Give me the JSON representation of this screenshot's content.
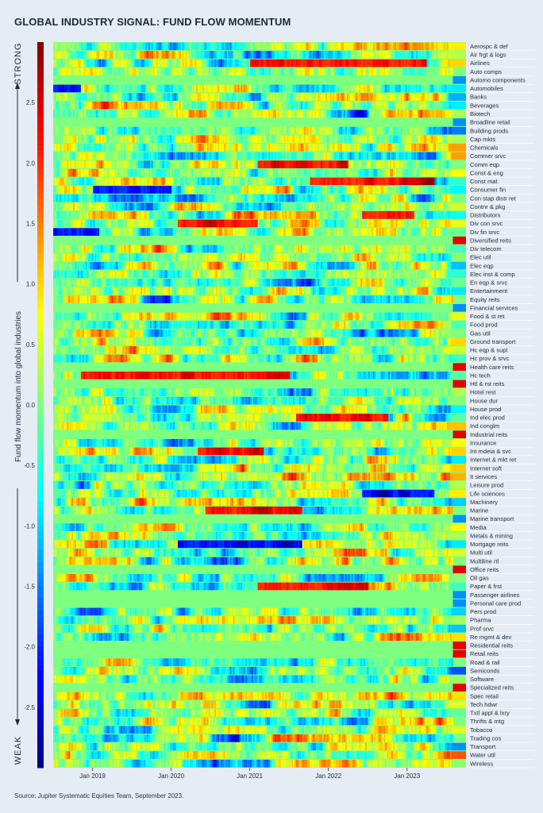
{
  "title": "GLOBAL INDUSTRY SIGNAL: FUND FLOW MOMENTUM",
  "source": "Source: Jupiter Systematic Equities Team, September 2023.",
  "chart_data": {
    "type": "heatmap",
    "colorbar": {
      "label": "Fund flow momentum into global industries",
      "top_label": "STRONG",
      "bottom_label": "WEAK",
      "range": [
        -3.0,
        3.0
      ],
      "ticks": [
        2.5,
        2.0,
        1.5,
        1.0,
        0.5,
        0.0,
        -0.5,
        -1.0,
        -1.5,
        -2.0,
        -2.5
      ],
      "tick_labels": [
        "2.5",
        "2.0",
        "1.5",
        "1.0",
        "0.5",
        "0.0",
        "-0.5",
        "-1.0",
        "-1.5",
        "-2.0",
        "-2.5"
      ],
      "colormap": "jet"
    },
    "x_axis": {
      "start": "2018-07",
      "end": "2023-09",
      "ticks": [
        "Jan 2019",
        "Jan 2020",
        "Jan 2021",
        "Jan 2022",
        "Jan 2023"
      ],
      "tick_months": [
        "2019-01",
        "2020-01",
        "2021-01",
        "2022-01",
        "2023-01"
      ]
    },
    "rows": [
      "Aerospc & def",
      "Air frgt & logs",
      "Airlines",
      "Auto comps",
      "Automo components",
      "Automobiles",
      "Banks",
      "Beverages",
      "Biotech",
      "Broadline retail",
      "Building prods",
      "Cap mkts",
      "Chemicals",
      "Commer srvc",
      "Comm eqp",
      "Const & eng",
      "Const mat",
      "Consumer fin",
      "Con stap distr ret",
      "Contnr & pkg",
      "Distributors",
      "Div con srvc",
      "Div fin srvc",
      "Diversified reits",
      "Div telecom",
      "Elec util",
      "Elec eqp",
      "Elec inst & comp",
      "En eqp & srvc",
      "Entertainment",
      "Equity reits",
      "Financial services",
      "Food & st ret",
      "Food prod",
      "Gas util",
      "Ground transport",
      "Hc eqp & supl",
      "Hc prov & srvc",
      "Health care reits",
      "Hc tech",
      "Htl & rst reits",
      "Hotel rest",
      "House dur",
      "House prod",
      "Ind elec prod",
      "Ind conglm",
      "Industrial reits",
      "Insurance",
      "Int mdeia & svc",
      "Internet & mkt ret",
      "Internet soft",
      "It services",
      "Leisure prod",
      "Life sciences",
      "Machinery",
      "Marine",
      "Marine transport",
      "Media",
      "Metals & mining",
      "Mortgage reits",
      "Multi util",
      "Multiline rtl",
      "Office reits",
      "Oil gas",
      "Paper & frst",
      "Passenger airlines",
      "Personal care prod",
      "Pers prod",
      "Pharma",
      "Prof srvc",
      "Re mgmt & dev",
      "Residential reits",
      "Retail reits",
      "Road & rail",
      "Semiconds",
      "Software",
      "Specialized reits",
      "Spec retail",
      "Tech hdwr",
      "Txtl appl & lxry",
      "Thrifts & mtg",
      "Tobacco",
      "Trading cos",
      "Transport",
      "Water util",
      "Wireless"
    ],
    "new_series_from_2023_08": [
      "Automo components",
      "Broadline retail",
      "Diversified reits",
      "Financial services",
      "Health care reits",
      "Htl & rst reits",
      "Industrial reits",
      "Marine transport",
      "Office reits",
      "Passenger airlines",
      "Personal care prod",
      "Residential reits",
      "Retail reits",
      "Specialized reits"
    ],
    "retired_series_after_2023_07": [
      "Auto comps",
      "Road & rail",
      "Multiline rtl",
      "Thrifts & mtg",
      "Trading cos",
      "Equity reits",
      "Marine"
    ],
    "notable_strong_periods": [
      {
        "row": "Airlines",
        "from": "2021-01",
        "to": "2023-03"
      },
      {
        "row": "Comm eqp",
        "from": "2021-02",
        "to": "2022-03"
      },
      {
        "row": "Const mat",
        "from": "2021-10",
        "to": "2023-04"
      },
      {
        "row": "Distributors",
        "from": "2022-06",
        "to": "2023-01"
      },
      {
        "row": "Div con srvc",
        "from": "2020-02",
        "to": "2021-01"
      },
      {
        "row": "Int mdeia & svc",
        "from": "2020-05",
        "to": "2021-02"
      },
      {
        "row": "Paper & frst",
        "from": "2021-02",
        "to": "2022-06"
      },
      {
        "row": "Hc tech",
        "from": "2018-11",
        "to": "2021-06"
      },
      {
        "row": "Ind elec prod",
        "from": "2021-08",
        "to": "2022-09"
      },
      {
        "row": "Marine",
        "from": "2020-06",
        "to": "2021-08"
      }
    ],
    "notable_weak_periods": [
      {
        "row": "Mortgage reits",
        "from": "2020-02",
        "to": "2021-08"
      },
      {
        "row": "Consumer fin",
        "from": "2019-01",
        "to": "2019-12"
      },
      {
        "row": "Div fin srvc",
        "from": "2018-07",
        "to": "2019-01"
      },
      {
        "row": "Life sciences",
        "from": "2022-06",
        "to": "2023-04"
      },
      {
        "row": "Automobiles",
        "from": "2018-07",
        "to": "2018-10"
      }
    ]
  }
}
